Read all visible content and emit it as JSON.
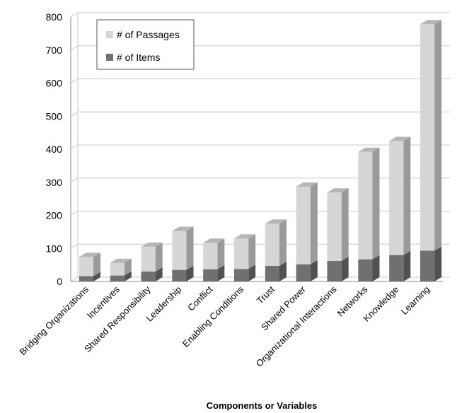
{
  "chart_data": {
    "type": "bar",
    "stacked": true,
    "xlabel": "Components or Variables",
    "ylabel": "",
    "ylim": [
      0,
      800
    ],
    "yticks": [
      0,
      100,
      200,
      300,
      400,
      500,
      600,
      700,
      800
    ],
    "grid": true,
    "legend_position": "top-left",
    "categories": [
      "Bridging Organizations",
      "Incentives",
      "Shared Responsibility",
      "Leadership",
      "Conflict",
      "Enabling Conditions",
      "Trust",
      "Shared Power",
      "Organizational Interactions",
      "Networks",
      "Knowledge",
      "Learning"
    ],
    "series": [
      {
        "name": "# of Items",
        "color": "#707070",
        "values": [
          16,
          18,
          30,
          35,
          37,
          38,
          47,
          52,
          62,
          67,
          80,
          93
        ]
      },
      {
        "name": "# of Passages",
        "color": "#d6d6d6",
        "values": [
          58,
          38,
          75,
          118,
          80,
          92,
          128,
          235,
          207,
          325,
          345,
          685
        ]
      }
    ]
  }
}
